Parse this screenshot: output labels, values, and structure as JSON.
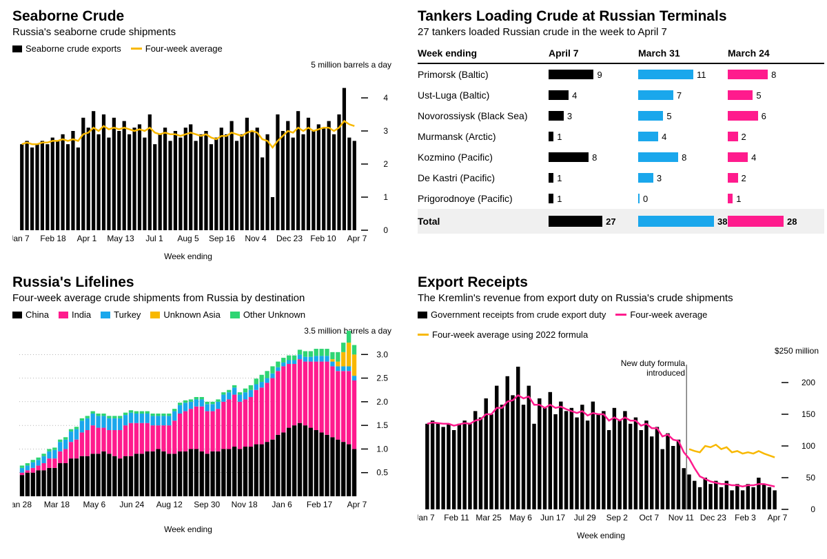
{
  "colors": {
    "black": "#000000",
    "yellow": "#f8b800",
    "pink": "#ff1b8d",
    "blue": "#1aa7ec",
    "green": "#2ed573",
    "grid": "#000000",
    "tick": "#999999",
    "bg": "#ffffff",
    "totalbg": "#f0f0f0"
  },
  "seaborne": {
    "title": "Seaborne Crude",
    "subtitle": "Russia's seaborne crude shipments",
    "legend_bars": "Seaborne crude exports",
    "legend_line": "Four-week average",
    "unit": "5 million barrels a day",
    "xlabel": "Week ending",
    "ylim": [
      0,
      5
    ],
    "yticks": [
      0,
      1,
      2,
      3,
      4
    ],
    "xticks": [
      "Jan 7",
      "Feb 18",
      "Apr 1",
      "May 13",
      "Jul 1",
      "Aug 5",
      "Sep 16",
      "Nov 4",
      "Dec 23",
      "Feb 10",
      "Apr 7"
    ],
    "values": [
      2.6,
      2.7,
      2.5,
      2.6,
      2.7,
      2.6,
      2.8,
      2.7,
      2.9,
      2.6,
      3.0,
      2.5,
      3.4,
      3.1,
      3.6,
      2.9,
      3.5,
      2.8,
      3.4,
      3.0,
      3.3,
      2.9,
      3.1,
      3.2,
      2.8,
      3.5,
      2.6,
      2.9,
      3.1,
      2.7,
      3.0,
      2.8,
      3.1,
      3.2,
      2.7,
      2.9,
      3.0,
      2.6,
      2.8,
      3.1,
      2.9,
      3.3,
      2.7,
      2.9,
      3.4,
      3.0,
      3.1,
      2.2,
      2.9,
      1.0,
      3.5,
      3.0,
      3.3,
      2.8,
      3.6,
      2.9,
      3.4,
      3.0,
      3.2,
      3.1,
      3.3,
      2.9,
      3.5,
      4.3,
      2.8,
      2.7
    ],
    "avg": [
      2.6,
      2.65,
      2.6,
      2.6,
      2.65,
      2.65,
      2.7,
      2.7,
      2.75,
      2.7,
      2.75,
      2.7,
      2.9,
      2.95,
      3.1,
      3.0,
      3.15,
      3.05,
      3.1,
      3.05,
      3.1,
      3.05,
      3.0,
      3.05,
      3.0,
      3.1,
      2.95,
      2.9,
      2.95,
      2.9,
      2.9,
      2.85,
      2.9,
      2.95,
      2.9,
      2.85,
      2.9,
      2.8,
      2.75,
      2.85,
      2.85,
      2.95,
      2.9,
      2.85,
      2.95,
      3.0,
      2.95,
      2.75,
      2.7,
      2.5,
      2.7,
      2.85,
      3.0,
      2.95,
      3.1,
      3.0,
      3.1,
      3.0,
      3.05,
      3.1,
      3.1,
      3.0,
      3.1,
      3.3,
      3.2,
      3.15
    ]
  },
  "tankers": {
    "title": "Tankers Loading Crude at Russian Terminals",
    "subtitle": "27 tankers loaded Russian crude in the week to April 7",
    "col_header": "Week ending",
    "dates": [
      "April 7",
      "March 31",
      "March 24"
    ],
    "colors": [
      "#000000",
      "#1aa7ec",
      "#ff1b8d"
    ],
    "max": 11,
    "max_total": 38,
    "rows": [
      {
        "name": "Primorsk (Baltic)",
        "vals": [
          9,
          11,
          8
        ]
      },
      {
        "name": "Ust-Luga (Baltic)",
        "vals": [
          4,
          7,
          5
        ]
      },
      {
        "name": "Novorossiysk (Black Sea)",
        "vals": [
          3,
          5,
          6
        ]
      },
      {
        "name": "Murmansk (Arctic)",
        "vals": [
          1,
          4,
          2
        ]
      },
      {
        "name": "Kozmino (Pacific)",
        "vals": [
          8,
          8,
          4
        ]
      },
      {
        "name": "De Kastri (Pacific)",
        "vals": [
          1,
          3,
          2
        ]
      },
      {
        "name": "Prigorodnoye (Pacific)",
        "vals": [
          1,
          0,
          1
        ]
      }
    ],
    "total_label": "Total",
    "total": [
      27,
      38,
      28
    ]
  },
  "lifelines": {
    "title": "Russia's Lifelines",
    "subtitle": "Four-week average crude shipments from Russia by destination",
    "legend": [
      {
        "label": "China",
        "color": "#000000"
      },
      {
        "label": "India",
        "color": "#ff1b8d"
      },
      {
        "label": "Turkey",
        "color": "#1aa7ec"
      },
      {
        "label": "Unknown Asia",
        "color": "#f8b800"
      },
      {
        "label": "Other Unknown",
        "color": "#2ed573"
      }
    ],
    "unit": "3.5 million barrels a day",
    "xlabel": "Week ending",
    "ylim": [
      0,
      3.5
    ],
    "yticks": [
      0.5,
      1.0,
      1.5,
      2.0,
      2.5,
      3.0
    ],
    "xticks": [
      "Jan 28",
      "Mar 18",
      "May 6",
      "Jun 24",
      "Aug 12",
      "Sep 30",
      "Nov 18",
      "Jan 6",
      "Feb 17",
      "Apr 7"
    ],
    "series": {
      "china": [
        0.45,
        0.5,
        0.5,
        0.55,
        0.55,
        0.6,
        0.6,
        0.7,
        0.7,
        0.8,
        0.8,
        0.85,
        0.85,
        0.9,
        0.9,
        0.95,
        0.9,
        0.85,
        0.8,
        0.85,
        0.85,
        0.9,
        0.9,
        0.95,
        0.95,
        1.0,
        0.95,
        0.9,
        0.9,
        0.95,
        0.95,
        1.0,
        1.0,
        0.95,
        0.9,
        0.95,
        0.95,
        1.0,
        1.0,
        1.05,
        1.0,
        1.05,
        1.05,
        1.1,
        1.1,
        1.15,
        1.2,
        1.3,
        1.35,
        1.45,
        1.5,
        1.55,
        1.5,
        1.45,
        1.4,
        1.35,
        1.3,
        1.25,
        1.2,
        1.15,
        1.1,
        1.0
      ],
      "india": [
        0.05,
        0.05,
        0.1,
        0.1,
        0.15,
        0.2,
        0.2,
        0.25,
        0.3,
        0.35,
        0.4,
        0.5,
        0.55,
        0.6,
        0.55,
        0.5,
        0.5,
        0.55,
        0.6,
        0.65,
        0.7,
        0.65,
        0.65,
        0.6,
        0.55,
        0.5,
        0.55,
        0.6,
        0.7,
        0.8,
        0.85,
        0.85,
        0.9,
        0.95,
        0.9,
        0.85,
        0.9,
        1.0,
        1.05,
        1.1,
        1.0,
        1.0,
        1.05,
        1.15,
        1.2,
        1.25,
        1.3,
        1.35,
        1.4,
        1.35,
        1.3,
        1.35,
        1.35,
        1.4,
        1.45,
        1.5,
        1.55,
        1.5,
        1.45,
        1.5,
        1.55,
        1.45
      ],
      "turkey": [
        0.1,
        0.1,
        0.12,
        0.12,
        0.15,
        0.15,
        0.18,
        0.2,
        0.2,
        0.22,
        0.22,
        0.25,
        0.25,
        0.25,
        0.25,
        0.25,
        0.25,
        0.25,
        0.25,
        0.22,
        0.22,
        0.2,
        0.2,
        0.2,
        0.2,
        0.2,
        0.2,
        0.2,
        0.2,
        0.18,
        0.18,
        0.15,
        0.15,
        0.15,
        0.15,
        0.15,
        0.15,
        0.15,
        0.15,
        0.15,
        0.15,
        0.15,
        0.15,
        0.12,
        0.12,
        0.1,
        0.1,
        0.08,
        0.08,
        0.08,
        0.08,
        0.1,
        0.1,
        0.1,
        0.12,
        0.12,
        0.12,
        0.1,
        0.1,
        0.1,
        0.1,
        0.1
      ],
      "unknownAsia": [
        0,
        0,
        0,
        0,
        0,
        0,
        0,
        0,
        0,
        0,
        0,
        0,
        0,
        0,
        0,
        0,
        0,
        0,
        0,
        0,
        0,
        0,
        0,
        0,
        0,
        0,
        0,
        0,
        0,
        0,
        0,
        0,
        0,
        0,
        0,
        0,
        0,
        0,
        0,
        0,
        0,
        0,
        0,
        0,
        0,
        0,
        0,
        0,
        0,
        0,
        0,
        0,
        0,
        0,
        0,
        0,
        0,
        0.05,
        0.1,
        0.3,
        0.5,
        0.45
      ],
      "otherUnknown": [
        0.05,
        0.05,
        0.05,
        0.05,
        0.05,
        0.05,
        0.05,
        0.05,
        0.05,
        0.05,
        0.05,
        0.05,
        0.05,
        0.05,
        0.05,
        0.05,
        0.05,
        0.05,
        0.05,
        0.05,
        0.05,
        0.05,
        0.05,
        0.05,
        0.05,
        0.05,
        0.05,
        0.05,
        0.05,
        0.05,
        0.05,
        0.05,
        0.05,
        0.05,
        0.05,
        0.05,
        0.05,
        0.05,
        0.05,
        0.05,
        0.05,
        0.08,
        0.1,
        0.12,
        0.15,
        0.15,
        0.15,
        0.12,
        0.1,
        0.1,
        0.1,
        0.1,
        0.12,
        0.12,
        0.15,
        0.15,
        0.15,
        0.15,
        0.2,
        0.2,
        0.25,
        0.2
      ]
    }
  },
  "receipts": {
    "title": "Export Receipts",
    "subtitle": "The Kremlin's revenue from export duty on Russia's crude shipments",
    "legend_bars": "Government receipts from crude export duty",
    "legend_pink": "Four-week average",
    "legend_yellow": "Four-week average using 2022 formula",
    "unit": "$250 million",
    "xlabel": "Week ending",
    "annot": "New duty formula introduced",
    "annot_index": 49,
    "ylim": [
      0,
      250
    ],
    "yticks": [
      0,
      50,
      100,
      150,
      200
    ],
    "xticks": [
      "Jan 7",
      "Feb 11",
      "Mar 25",
      "May 6",
      "Jun 17",
      "Jul 29",
      "Sep 2",
      "Oct 7",
      "Nov 11",
      "Dec 23",
      "Feb 3",
      "Apr 7"
    ],
    "values": [
      135,
      140,
      135,
      130,
      135,
      125,
      135,
      140,
      135,
      155,
      145,
      175,
      150,
      195,
      165,
      210,
      180,
      225,
      165,
      195,
      135,
      175,
      160,
      185,
      150,
      170,
      155,
      160,
      145,
      165,
      140,
      170,
      150,
      155,
      125,
      160,
      140,
      155,
      135,
      145,
      125,
      140,
      115,
      130,
      95,
      120,
      100,
      110,
      65,
      55,
      45,
      35,
      50,
      40,
      45,
      35,
      45,
      30,
      40,
      30,
      40,
      35,
      50,
      40,
      35,
      30
    ],
    "avg": [
      135,
      137,
      136,
      135,
      135,
      132,
      134,
      136,
      135,
      140,
      142,
      150,
      150,
      160,
      160,
      170,
      172,
      180,
      175,
      178,
      165,
      165,
      160,
      165,
      160,
      162,
      158,
      155,
      152,
      155,
      148,
      152,
      150,
      150,
      140,
      145,
      140,
      145,
      140,
      140,
      132,
      135,
      128,
      128,
      115,
      118,
      110,
      108,
      90,
      80,
      65,
      52,
      48,
      44,
      42,
      40,
      40,
      38,
      38,
      36,
      38,
      38,
      40,
      40,
      38,
      36
    ],
    "avg2022": [
      null,
      null,
      null,
      null,
      null,
      null,
      null,
      null,
      null,
      null,
      null,
      null,
      null,
      null,
      null,
      null,
      null,
      null,
      null,
      null,
      null,
      null,
      null,
      null,
      null,
      null,
      null,
      null,
      null,
      null,
      null,
      null,
      null,
      null,
      null,
      null,
      null,
      null,
      null,
      null,
      null,
      null,
      null,
      null,
      null,
      null,
      null,
      null,
      null,
      95,
      92,
      90,
      100,
      98,
      102,
      95,
      98,
      90,
      92,
      88,
      90,
      88,
      92,
      88,
      85,
      82
    ]
  }
}
